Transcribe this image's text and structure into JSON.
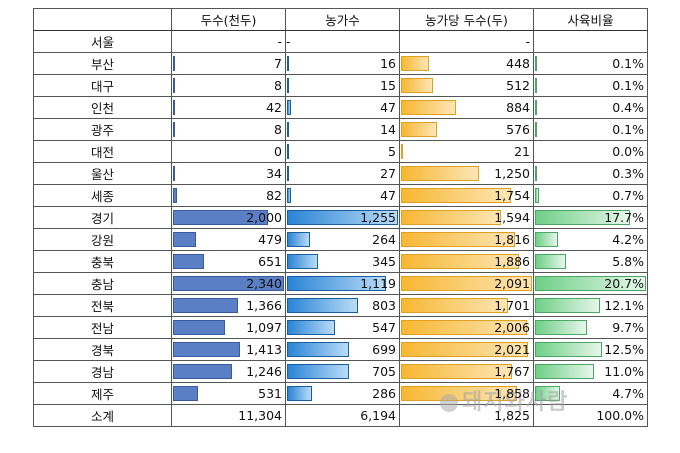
{
  "headers": [
    "",
    "두수(천두)",
    "농가수",
    "농가당 두수(두)",
    "사육비율"
  ],
  "rows": [
    {
      "region": "서울",
      "heads": "-",
      "farms": "-",
      "per": "-",
      "ratio": "",
      "bars": [
        0,
        0,
        0,
        0
      ],
      "dash": true
    },
    {
      "region": "부산",
      "heads": "7",
      "farms": "16",
      "per": "448",
      "ratio": "0.1%",
      "bars": [
        7,
        16,
        448,
        0.1
      ]
    },
    {
      "region": "대구",
      "heads": "8",
      "farms": "15",
      "per": "512",
      "ratio": "0.1%",
      "bars": [
        8,
        15,
        512,
        0.1
      ]
    },
    {
      "region": "인천",
      "heads": "42",
      "farms": "47",
      "per": "884",
      "ratio": "0.4%",
      "bars": [
        42,
        47,
        884,
        0.4
      ]
    },
    {
      "region": "광주",
      "heads": "8",
      "farms": "14",
      "per": "576",
      "ratio": "0.1%",
      "bars": [
        8,
        14,
        576,
        0.1
      ]
    },
    {
      "region": "대전",
      "heads": "0",
      "farms": "5",
      "per": "21",
      "ratio": "0.0%",
      "bars": [
        0,
        5,
        21,
        0
      ]
    },
    {
      "region": "울산",
      "heads": "34",
      "farms": "27",
      "per": "1,250",
      "ratio": "0.3%",
      "bars": [
        34,
        27,
        1250,
        0.3
      ]
    },
    {
      "region": "세종",
      "heads": "82",
      "farms": "47",
      "per": "1,754",
      "ratio": "0.7%",
      "bars": [
        82,
        47,
        1754,
        0.7
      ]
    },
    {
      "region": "경기",
      "heads": "2,000",
      "farms": "1,255",
      "per": "1,594",
      "ratio": "17.7%",
      "bars": [
        2000,
        1255,
        1594,
        17.7
      ]
    },
    {
      "region": "강원",
      "heads": "479",
      "farms": "264",
      "per": "1,816",
      "ratio": "4.2%",
      "bars": [
        479,
        264,
        1816,
        4.2
      ]
    },
    {
      "region": "충북",
      "heads": "651",
      "farms": "345",
      "per": "1,886",
      "ratio": "5.8%",
      "bars": [
        651,
        345,
        1886,
        5.8
      ]
    },
    {
      "region": "충남",
      "heads": "2,340",
      "farms": "1,119",
      "per": "2,091",
      "ratio": "20.7%",
      "bars": [
        2340,
        1119,
        2091,
        20.7
      ]
    },
    {
      "region": "전북",
      "heads": "1,366",
      "farms": "803",
      "per": "1,701",
      "ratio": "12.1%",
      "bars": [
        1366,
        803,
        1701,
        12.1
      ]
    },
    {
      "region": "전남",
      "heads": "1,097",
      "farms": "547",
      "per": "2,006",
      "ratio": "9.7%",
      "bars": [
        1097,
        547,
        2006,
        9.7
      ]
    },
    {
      "region": "경북",
      "heads": "1,413",
      "farms": "699",
      "per": "2,021",
      "ratio": "12.5%",
      "bars": [
        1413,
        699,
        2021,
        12.5
      ]
    },
    {
      "region": "경남",
      "heads": "1,246",
      "farms": "705",
      "per": "1,767",
      "ratio": "11.0%",
      "bars": [
        1246,
        705,
        1767,
        11.0
      ]
    },
    {
      "region": "제주",
      "heads": "531",
      "farms": "286",
      "per": "1,858",
      "ratio": "4.7%",
      "bars": [
        531,
        286,
        1858,
        4.7
      ]
    }
  ],
  "total": {
    "region": "소계",
    "heads": "11,304",
    "farms": "6,194",
    "per": "1,825",
    "ratio": "100.0%"
  },
  "bar_max": [
    2340,
    1255,
    2091,
    20.7
  ],
  "watermark": "돼지와사람"
}
